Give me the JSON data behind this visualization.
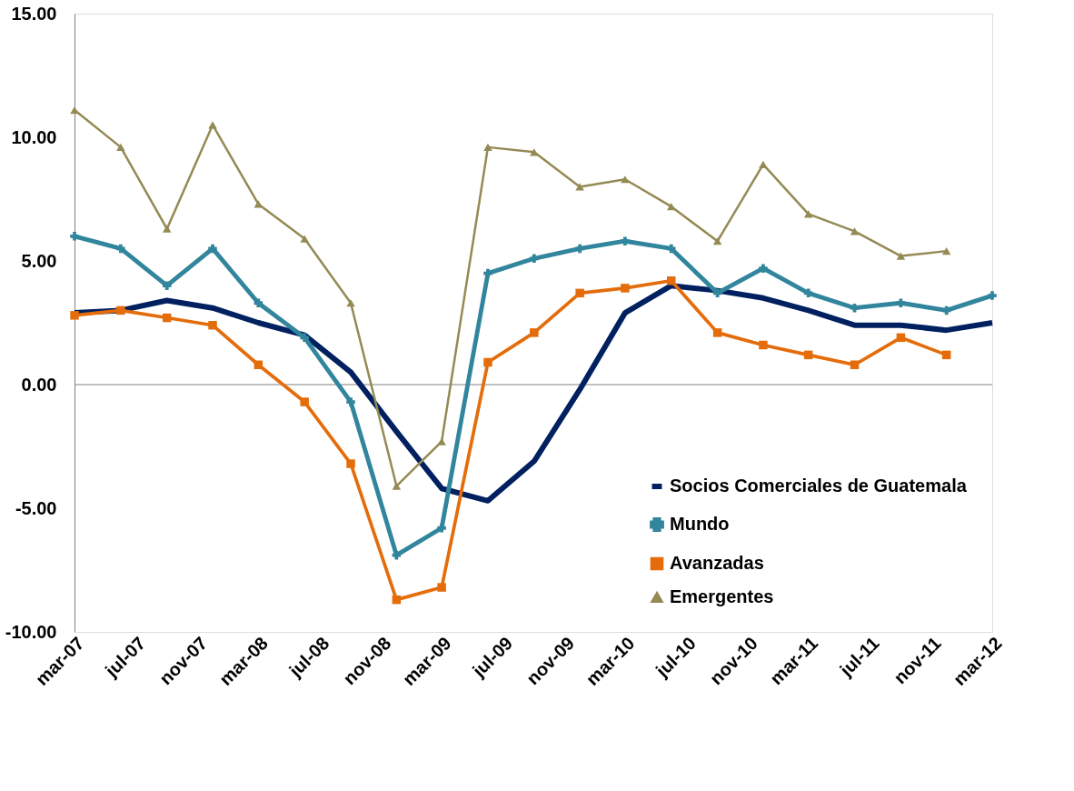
{
  "chart_data": {
    "type": "line",
    "x": [
      "2007-03",
      "2007-06",
      "2007-09",
      "2007-12",
      "2008-03",
      "2008-06",
      "2008-09",
      "2008-12",
      "2009-03",
      "2009-06",
      "2009-09",
      "2009-12",
      "2010-03",
      "2010-06",
      "2010-09",
      "2010-12",
      "2011-03",
      "2011-06",
      "2011-09",
      "2011-12",
      "2012-03"
    ],
    "series": [
      {
        "name": "Socios Comerciales de Guatemala",
        "color": "#002060",
        "marker": "none",
        "values": [
          2.9,
          3.0,
          3.4,
          3.1,
          2.5,
          2.0,
          0.5,
          -1.9,
          -4.2,
          -4.7,
          -3.1,
          -0.2,
          2.9,
          4.0,
          3.8,
          3.5,
          3.0,
          2.4,
          2.4,
          2.2,
          2.5
        ]
      },
      {
        "name": "Mundo",
        "color": "#31859c",
        "marker": "cross",
        "values": [
          6.0,
          5.5,
          4.0,
          5.5,
          3.3,
          1.9,
          -0.7,
          -6.9,
          -5.8,
          4.5,
          5.1,
          5.5,
          5.8,
          5.5,
          3.7,
          4.7,
          3.7,
          3.1,
          3.3,
          3.0,
          3.6
        ]
      },
      {
        "name": "Avanzadas",
        "color": "#e46c0a",
        "marker": "square",
        "values": [
          2.8,
          3.0,
          2.7,
          2.4,
          0.8,
          -0.7,
          -3.2,
          -8.7,
          -8.2,
          0.9,
          2.1,
          3.7,
          3.9,
          4.2,
          2.1,
          1.6,
          1.2,
          0.8,
          1.9,
          1.2,
          null
        ]
      },
      {
        "name": "Emergentes",
        "color": "#948a54",
        "marker": "triangle",
        "values": [
          11.1,
          9.6,
          6.3,
          10.5,
          7.3,
          5.9,
          3.3,
          -4.1,
          -2.3,
          9.6,
          9.4,
          8.0,
          8.3,
          7.2,
          5.8,
          8.9,
          6.9,
          6.2,
          5.2,
          5.4,
          null
        ]
      }
    ],
    "xlim": [
      "2007-03",
      "2012-03"
    ],
    "xticks": [
      {
        "value": "2007-03",
        "label": "mar-07"
      },
      {
        "value": "2007-07",
        "label": "jul-07"
      },
      {
        "value": "2007-11",
        "label": "nov-07"
      },
      {
        "value": "2008-03",
        "label": "mar-08"
      },
      {
        "value": "2008-07",
        "label": "jul-08"
      },
      {
        "value": "2008-11",
        "label": "nov-08"
      },
      {
        "value": "2009-03",
        "label": "mar-09"
      },
      {
        "value": "2009-07",
        "label": "jul-09"
      },
      {
        "value": "2009-11",
        "label": "nov-09"
      },
      {
        "value": "2010-03",
        "label": "mar-10"
      },
      {
        "value": "2010-07",
        "label": "jul-10"
      },
      {
        "value": "2010-11",
        "label": "nov-10"
      },
      {
        "value": "2011-03",
        "label": "mar-11"
      },
      {
        "value": "2011-07",
        "label": "jul-11"
      },
      {
        "value": "2011-11",
        "label": "nov-11"
      },
      {
        "value": "2012-03",
        "label": "mar-12"
      }
    ],
    "ylim": [
      -10,
      15
    ],
    "yticks": [
      {
        "value": -10,
        "label": "-10.00"
      },
      {
        "value": -5,
        "label": "-5.00"
      },
      {
        "value": 0,
        "label": "0.00"
      },
      {
        "value": 5,
        "label": "5.00"
      },
      {
        "value": 10,
        "label": "10.00"
      },
      {
        "value": 15,
        "label": "15.00"
      }
    ],
    "ref_lines": [
      {
        "axis": "y",
        "value": 0,
        "color": "#808080"
      }
    ],
    "grid": false,
    "legend": "bottom right"
  }
}
